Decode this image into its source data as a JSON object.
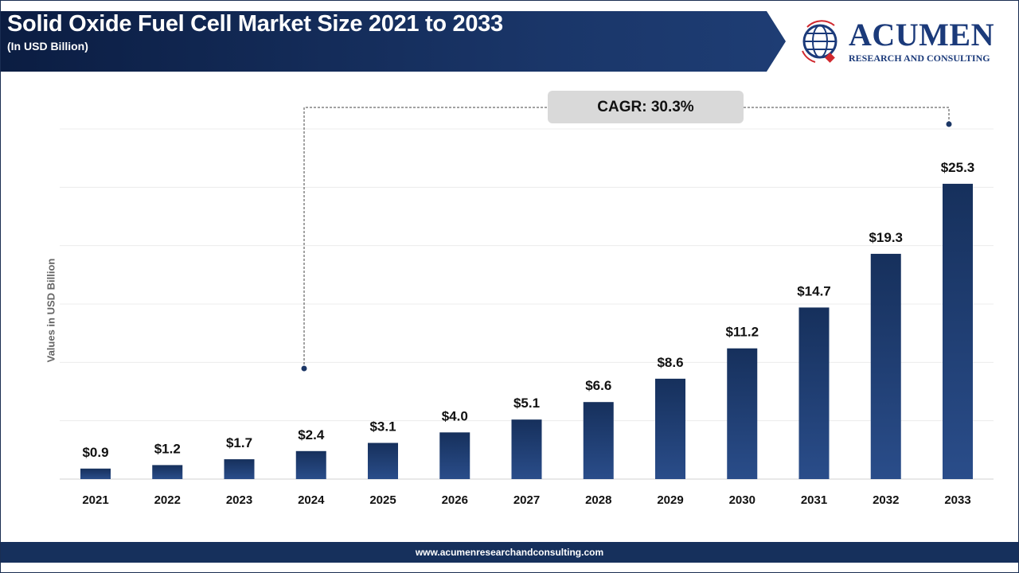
{
  "header": {
    "title": "Solid Oxide Fuel Cell Market Size 2021 to 2033",
    "subtitle": "(In USD Billion)"
  },
  "logo": {
    "word": "ACUMEN",
    "tagline": "RESEARCH AND CONSULTING"
  },
  "footer": {
    "url": "www.acumenresearchandconsulting.com"
  },
  "annotation": {
    "cagr": "CAGR: 30.3%"
  },
  "colors": {
    "bar": "#1c3766",
    "banner": "#0b1d42",
    "footer": "#16305c",
    "cagr_box": "#d9d9d9"
  },
  "chart_data": {
    "type": "bar",
    "title": "Solid Oxide Fuel Cell Market Size 2021 to 2033",
    "subtitle": "(In USD Billion)",
    "xlabel": "",
    "ylabel": "Values in USD Billion",
    "ylim": [
      0,
      30
    ],
    "grid": true,
    "categories": [
      "2021",
      "2022",
      "2023",
      "2024",
      "2025",
      "2026",
      "2027",
      "2028",
      "2029",
      "2030",
      "2031",
      "2032",
      "2033"
    ],
    "values": [
      0.9,
      1.2,
      1.7,
      2.4,
      3.1,
      4.0,
      5.1,
      6.6,
      8.6,
      11.2,
      14.7,
      19.3,
      25.3
    ],
    "data_labels": [
      "$0.9",
      "$1.2",
      "$1.7",
      "$2.4",
      "$3.1",
      "$4.0",
      "$5.1",
      "$6.6",
      "$8.6",
      "$11.2",
      "$14.7",
      "$19.3",
      "$25.3"
    ]
  }
}
